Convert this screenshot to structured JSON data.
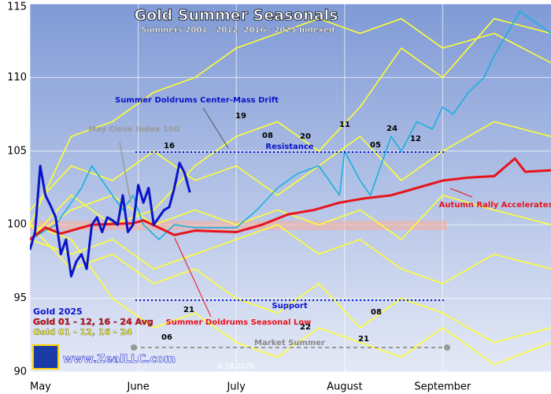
{
  "chart_data": {
    "type": "line",
    "title": "Gold Summer Seasonals",
    "subtitle": "Summers 2001 - 2012, 2016 - 2025 Indexed",
    "xlim": [
      0,
      101
    ],
    "xticks": [
      {
        "value": 0,
        "label": "May"
      },
      {
        "value": 21,
        "label": "June"
      },
      {
        "value": 40,
        "label": "July"
      },
      {
        "value": 61,
        "label": "August"
      },
      {
        "value": 80,
        "label": "September"
      }
    ],
    "ylim": [
      90,
      115
    ],
    "yticks": [
      90,
      95,
      100,
      105,
      110,
      115
    ],
    "grid": true,
    "series": [
      {
        "color": "#ffff33",
        "x": [
          0,
          8,
          16,
          24,
          32,
          40,
          48,
          56,
          64,
          72,
          80,
          90,
          101
        ],
        "values": [
          99,
          102,
          100,
          101,
          104,
          106,
          107,
          105,
          108,
          112,
          110,
          114,
          113
        ]
      },
      {
        "color": "#ffff33",
        "x": [
          0,
          8,
          16,
          24,
          32,
          40,
          48,
          56,
          64,
          72,
          80,
          90,
          101
        ],
        "values": [
          100,
          97,
          98,
          96,
          97,
          95,
          94,
          96,
          93,
          95,
          94,
          92,
          93
        ]
      },
      {
        "color": "#ffff33",
        "x": [
          0,
          8,
          16,
          24,
          32,
          40,
          48,
          56,
          64,
          72,
          80,
          90,
          101
        ],
        "values": [
          101,
          104,
          103,
          105,
          103,
          104,
          102,
          104,
          106,
          103,
          105,
          107,
          106
        ]
      },
      {
        "color": "#ffff33",
        "x": [
          0,
          8,
          16,
          24,
          32,
          40,
          48,
          56,
          64,
          72,
          80,
          90,
          101
        ],
        "values": [
          99,
          98,
          99,
          97,
          98,
          99,
          100,
          98,
          99,
          97,
          96,
          98,
          97
        ]
      },
      {
        "color": "#ffff33",
        "x": [
          0,
          8,
          16,
          24,
          32,
          40,
          48,
          56,
          64,
          72,
          80,
          90,
          101
        ],
        "values": [
          100,
          106,
          107,
          109,
          110,
          112,
          113,
          114,
          113,
          114,
          112,
          113,
          111
        ]
      },
      {
        "color": "#ffff33",
        "x": [
          0,
          8,
          16,
          24,
          32,
          40,
          48,
          56,
          64,
          72,
          80,
          90,
          101
        ],
        "values": [
          100,
          99,
          95,
          93,
          94,
          92,
          91,
          93,
          92,
          91,
          93,
          90.5,
          92
        ]
      },
      {
        "color": "#ffff33",
        "x": [
          0,
          8,
          16,
          24,
          32,
          40,
          48,
          56,
          64,
          72,
          80,
          90,
          101
        ],
        "values": [
          99,
          101,
          102,
          100,
          101,
          100,
          101,
          100,
          101,
          99,
          102,
          101,
          100
        ]
      },
      {
        "color": "#1ab0e0",
        "x": [
          0,
          5,
          8,
          10,
          12,
          14,
          18,
          20,
          22,
          25,
          28,
          32,
          40,
          44,
          48,
          52,
          56,
          60,
          61,
          64,
          66,
          68,
          70,
          72,
          75,
          78,
          80,
          82,
          85,
          88,
          90,
          95,
          101
        ],
        "values": [
          99,
          100,
          101.5,
          102.5,
          104,
          103,
          101,
          102,
          100,
          99,
          100,
          99.8,
          99.8,
          101,
          102.5,
          103.5,
          104,
          102,
          105,
          103,
          102,
          104,
          106,
          105,
          107,
          106.5,
          108,
          107.5,
          109,
          110,
          111.5,
          114.5,
          113
        ]
      },
      {
        "name": "Gold 01 - 12, 16 - 24 Avg",
        "color": "#e8141c",
        "x": [
          0,
          3,
          6,
          12,
          20,
          22,
          25,
          28,
          32,
          40,
          45,
          50,
          55,
          60,
          65,
          70,
          75,
          80,
          85,
          90,
          94,
          96,
          101
        ],
        "values": [
          99,
          99.8,
          99.4,
          100,
          100.1,
          100.3,
          99.8,
          99.3,
          99.6,
          99.5,
          100,
          100.7,
          101,
          101.5,
          101.8,
          102,
          102.5,
          103,
          103.2,
          103.3,
          104.5,
          103.6,
          103.7
        ]
      },
      {
        "name": "Gold 2025",
        "color": "#0a14c8",
        "x": [
          0,
          1,
          2,
          3,
          4,
          5,
          6,
          7,
          8,
          9,
          10,
          11,
          12,
          13,
          14,
          15,
          16,
          17,
          18,
          19,
          20,
          21,
          22,
          23,
          24,
          25,
          26,
          27,
          28,
          29,
          30,
          31
        ],
        "values": [
          98.3,
          99.5,
          104,
          102,
          101.3,
          100.5,
          98,
          99,
          96.5,
          97.5,
          98,
          97,
          100,
          100.5,
          99.5,
          100.5,
          100.3,
          100,
          102,
          99.5,
          100,
          102.7,
          101.5,
          102.5,
          100,
          100.5,
          101,
          101.2,
          102.5,
          104.2,
          103.5,
          102.2
        ]
      }
    ],
    "legend_extra": {
      "text": "Gold 01 - 12, 16 - 24",
      "color": "#ffff33"
    },
    "annotations": [
      "Summer Doldrums Center-Mass Drift",
      "May Close Index 100",
      "Resistance",
      "Support",
      "Autumn Rally Accelerates",
      "Summer Doldrums Seasonal Low",
      "Market Summer",
      "www.ZealLLC.com",
      "6.18.2025"
    ],
    "year_labels": [
      "16",
      "19",
      "08",
      "20",
      "11",
      "05",
      "24",
      "12",
      "21",
      "22",
      "08",
      "21",
      "06"
    ]
  }
}
